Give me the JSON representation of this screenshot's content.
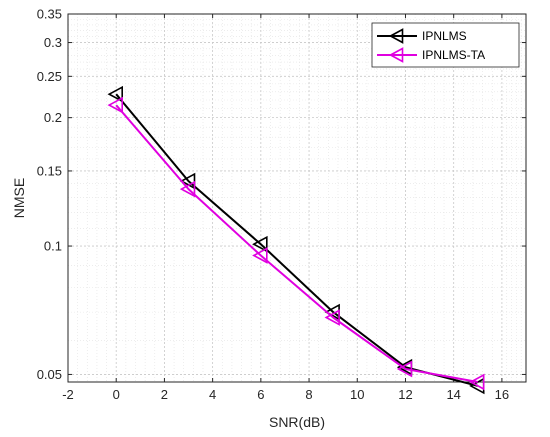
{
  "chart_data": {
    "type": "line",
    "title": "",
    "xlabel": "SNR(dB)",
    "ylabel": "NMSE",
    "xlim": [
      -2,
      17
    ],
    "ylim": [
      0.048,
      0.35
    ],
    "yscale": "log",
    "grid": true,
    "minor_grid": true,
    "legend_position": "top-right",
    "x_ticks": [
      -2,
      0,
      2,
      4,
      6,
      8,
      10,
      12,
      14,
      16
    ],
    "y_ticks": [
      0.05,
      0.1,
      0.15,
      0.2,
      0.25,
      0.3,
      0.35
    ],
    "y_tick_labels": [
      "0.05",
      "0.1",
      "0.15",
      "0.2",
      "0.25",
      "0.3",
      "0.35"
    ],
    "series": [
      {
        "name": "IPNLMS",
        "color": "#000000",
        "marker": "triangle-left",
        "x": [
          0,
          3,
          6,
          9,
          12,
          15
        ],
        "y": [
          0.227,
          0.142,
          0.101,
          0.07,
          0.052,
          0.047
        ]
      },
      {
        "name": "IPNLMS-TA",
        "color": "#e000e0",
        "marker": "triangle-left",
        "x": [
          0,
          3,
          6,
          9,
          12,
          15
        ],
        "y": [
          0.214,
          0.136,
          0.095,
          0.068,
          0.0515,
          0.048
        ]
      }
    ]
  }
}
